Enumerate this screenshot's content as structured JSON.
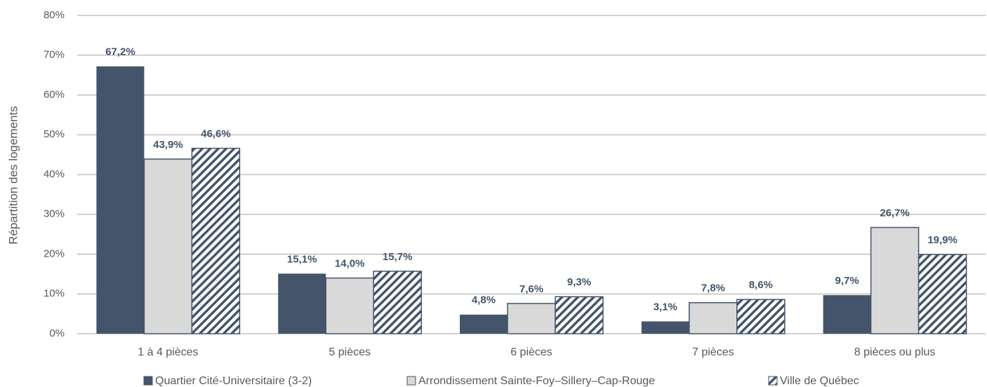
{
  "chart_data": {
    "type": "bar",
    "y_label": "Répartition des logements",
    "categories": [
      "1 à 4 pièces",
      "5 pièces",
      "6 pièces",
      "7 pièces",
      "8 pièces ou plus"
    ],
    "series": [
      {
        "name": "Quartier Cité-Universitaire (3-2)",
        "color": "#44546a",
        "values": [
          67.2,
          15.1,
          4.8,
          3.1,
          9.7
        ],
        "value_labels": [
          "67,2%",
          "15,1%",
          "4,8%",
          "3,1%",
          "9,7%"
        ]
      },
      {
        "name": "Arrondissement Sainte-Foy–Sillery–Cap-Rouge",
        "color": "#d9d9d9",
        "values": [
          43.9,
          14.0,
          7.6,
          7.8,
          26.7
        ],
        "value_labels": [
          "43,9%",
          "14,0%",
          "7,6%",
          "7,8%",
          "26,7%"
        ]
      },
      {
        "name": "Ville de Québec",
        "color": "#44546a",
        "hatch": true,
        "values": [
          46.6,
          15.7,
          9.3,
          8.6,
          19.9
        ],
        "value_labels": [
          "46,6%",
          "15,7%",
          "9,3%",
          "8,6%",
          "19,9%"
        ]
      }
    ],
    "ylim": [
      0,
      80
    ],
    "yticks": [
      {
        "value": 0,
        "label": "0%"
      },
      {
        "value": 10,
        "label": "10%"
      },
      {
        "value": 20,
        "label": "20%"
      },
      {
        "value": 30,
        "label": "30%"
      },
      {
        "value": 40,
        "label": "40%"
      },
      {
        "value": 50,
        "label": "50%"
      },
      {
        "value": 60,
        "label": "60%"
      },
      {
        "value": 70,
        "label": "70%"
      },
      {
        "value": 80,
        "label": "80%"
      }
    ],
    "grid": true,
    "legend": "bottom"
  }
}
